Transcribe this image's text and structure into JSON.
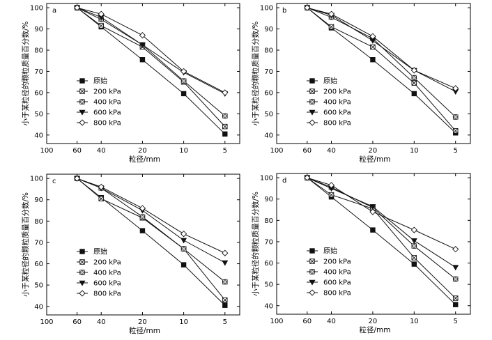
{
  "chart_data": [
    {
      "type": "line",
      "panel_label": "a",
      "x_scale": "log-reversed",
      "xlim": [
        100,
        3.9
      ],
      "ylim": [
        36,
        102
      ],
      "x_ticks": [
        100,
        60,
        40,
        20,
        10,
        5
      ],
      "y_ticks": [
        40,
        50,
        60,
        70,
        80,
        90,
        100
      ],
      "xlabel": "粒径/mm",
      "ylabel": "小于某粒径的颗粒质量百分数/%",
      "legend_position": "middle-left",
      "x": [
        60,
        40,
        20,
        10,
        5
      ],
      "series": [
        {
          "name": "原始",
          "marker": "square",
          "values": [
            100,
            91,
            75.5,
            59.5,
            40.5
          ]
        },
        {
          "name": "200 kPa",
          "marker": "square-x",
          "values": [
            100,
            91.5,
            81.5,
            65,
            44
          ]
        },
        {
          "name": "400 kPa",
          "marker": "square-cross",
          "values": [
            100,
            94.5,
            82.5,
            65.5,
            49
          ]
        },
        {
          "name": "600 kPa",
          "marker": "triangle-down",
          "values": [
            100,
            95.5,
            82.5,
            69.5,
            59.5
          ]
        },
        {
          "name": "800 kPa",
          "marker": "diamond",
          "values": [
            100,
            97,
            87,
            70,
            60
          ]
        }
      ]
    },
    {
      "type": "line",
      "panel_label": "b",
      "x_scale": "log-reversed",
      "xlim": [
        100,
        3.9
      ],
      "ylim": [
        36,
        102
      ],
      "x_ticks": [
        100,
        60,
        40,
        20,
        10,
        5
      ],
      "y_ticks": [
        40,
        50,
        60,
        70,
        80,
        90,
        100
      ],
      "xlabel": "粒径/mm",
      "ylabel": "小于某粒径的颗粒质量百分数/%",
      "legend_position": "middle-left",
      "x": [
        60,
        40,
        20,
        10,
        5
      ],
      "series": [
        {
          "name": "原始",
          "marker": "square",
          "values": [
            100,
            90.5,
            75.5,
            59.5,
            41
          ]
        },
        {
          "name": "200 kPa",
          "marker": "square-x",
          "values": [
            100,
            91,
            81.5,
            64.5,
            42
          ]
        },
        {
          "name": "400 kPa",
          "marker": "square-cross",
          "values": [
            100,
            95.5,
            85.5,
            67,
            48.5
          ]
        },
        {
          "name": "600 kPa",
          "marker": "triangle-down",
          "values": [
            100,
            96.5,
            84.5,
            70.5,
            60.5
          ]
        },
        {
          "name": "800 kPa",
          "marker": "diamond",
          "values": [
            100,
            97,
            86.5,
            70.5,
            62
          ]
        }
      ]
    },
    {
      "type": "line",
      "panel_label": "c",
      "x_scale": "log-reversed",
      "xlim": [
        100,
        3.9
      ],
      "ylim": [
        36,
        102
      ],
      "x_ticks": [
        100,
        60,
        40,
        20,
        10,
        5
      ],
      "y_ticks": [
        40,
        50,
        60,
        70,
        80,
        90,
        100
      ],
      "xlabel": "粒径/mm",
      "ylabel": "小于某粒径的颗粒质量百分数/%",
      "legend_position": "middle-left",
      "x": [
        60,
        40,
        20,
        10,
        5
      ],
      "series": [
        {
          "name": "原始",
          "marker": "square",
          "values": [
            100,
            91,
            75.5,
            59.5,
            40.5
          ]
        },
        {
          "name": "200 kPa",
          "marker": "square-x",
          "values": [
            100,
            90.5,
            81.5,
            67,
            43
          ]
        },
        {
          "name": "400 kPa",
          "marker": "square-cross",
          "values": [
            100,
            95.5,
            82,
            67,
            51.5
          ]
        },
        {
          "name": "600 kPa",
          "marker": "triangle-down",
          "values": [
            100,
            95.5,
            85,
            71,
            60.5
          ]
        },
        {
          "name": "800 kPa",
          "marker": "diamond",
          "values": [
            100,
            96,
            86,
            74,
            65
          ]
        }
      ]
    },
    {
      "type": "line",
      "panel_label": "d",
      "x_scale": "log-reversed",
      "xlim": [
        100,
        3.9
      ],
      "ylim": [
        36,
        102
      ],
      "x_ticks": [
        100,
        60,
        40,
        20,
        10,
        5
      ],
      "y_ticks": [
        40,
        50,
        60,
        70,
        80,
        90,
        100
      ],
      "xlabel": "粒径/mm",
      "ylabel": "小于某粒径的颗粒质量百分数/%",
      "legend_position": "middle-left",
      "x": [
        60,
        40,
        20,
        10,
        5
      ],
      "series": [
        {
          "name": "原始",
          "marker": "square",
          "values": [
            100,
            91,
            75.5,
            59.5,
            40.5
          ]
        },
        {
          "name": "200 kPa",
          "marker": "square-x",
          "values": [
            100,
            92,
            85.5,
            62.5,
            43.5
          ]
        },
        {
          "name": "400 kPa",
          "marker": "square-cross",
          "values": [
            100,
            95.5,
            86,
            68,
            52.5
          ]
        },
        {
          "name": "600 kPa",
          "marker": "triangle-down",
          "values": [
            100,
            95,
            86.5,
            70.5,
            58
          ]
        },
        {
          "name": "800 kPa",
          "marker": "diamond",
          "values": [
            100,
            96.5,
            84,
            75.5,
            66.5
          ]
        }
      ]
    }
  ]
}
